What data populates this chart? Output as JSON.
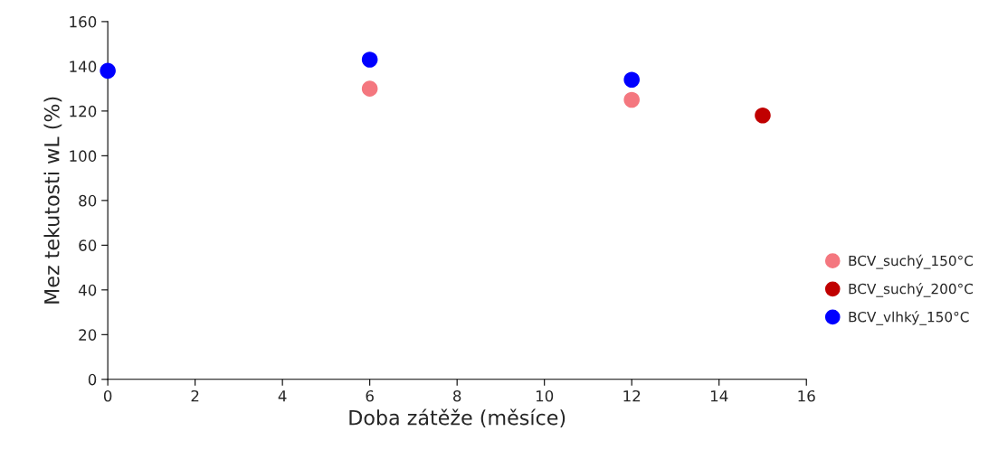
{
  "chart_data": {
    "type": "scatter",
    "xlabel": "Doba zátěže (měsíce)",
    "ylabel": "Mez tekutosti wL (%)",
    "xlim": [
      0,
      16
    ],
    "xticks": [
      0,
      2,
      4,
      6,
      8,
      10,
      12,
      14,
      16
    ],
    "ylim": [
      0,
      160
    ],
    "yticks": [
      0,
      20,
      40,
      60,
      80,
      100,
      120,
      140,
      160
    ],
    "grid": false,
    "legend": "right",
    "marker": "circle",
    "series": [
      {
        "name": "BCV_suchý_150°C",
        "color": "#f4777f",
        "x": [
          6,
          12
        ],
        "values": [
          130,
          125
        ]
      },
      {
        "name": "BCV_suchý_200°C",
        "color": "#c00000",
        "x": [
          15
        ],
        "values": [
          118
        ]
      },
      {
        "name": "BCV_vlhký_150°C",
        "color": "#0000ff",
        "x": [
          0,
          6,
          12
        ],
        "values": [
          138,
          143,
          134
        ]
      }
    ]
  }
}
